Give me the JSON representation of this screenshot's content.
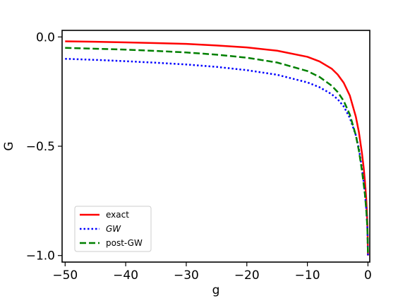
{
  "chart_data": {
    "type": "line",
    "xlabel": "g",
    "ylabel": "G",
    "xlim": [
      -50.5,
      0.3
    ],
    "ylim": [
      -1.03,
      0.03
    ],
    "xticks": [
      -50,
      -40,
      -30,
      -20,
      -10,
      0
    ],
    "xtick_labels": [
      "−50",
      "−40",
      "−30",
      "−20",
      "−10",
      "0"
    ],
    "yticks": [
      0.0,
      -0.5,
      -1.0
    ],
    "ytick_labels": [
      "0.0",
      "−0.5",
      "−1.0"
    ],
    "grid": false,
    "legend_position": "lower-left",
    "series": [
      {
        "name": "exact",
        "color": "#ff0000",
        "style": "solid",
        "italic": false,
        "x": [
          -50,
          -45,
          -40,
          -35,
          -30,
          -25,
          -20,
          -15,
          -10,
          -8,
          -6,
          -5,
          -4,
          -3,
          -2,
          -1.5,
          -1,
          -0.7,
          -0.5,
          -0.3,
          -0.2,
          -0.1,
          -0.05,
          0
        ],
        "y": [
          -0.02,
          -0.022,
          -0.025,
          -0.028,
          -0.032,
          -0.039,
          -0.048,
          -0.063,
          -0.091,
          -0.112,
          -0.145,
          -0.172,
          -0.21,
          -0.268,
          -0.365,
          -0.435,
          -0.53,
          -0.6,
          -0.66,
          -0.735,
          -0.79,
          -0.855,
          -0.91,
          -1.0
        ]
      },
      {
        "name": "GW",
        "color": "#0000ff",
        "style": "dotted",
        "italic": true,
        "x": [
          -50,
          -45,
          -40,
          -35,
          -30,
          -25,
          -20,
          -15,
          -10,
          -8,
          -6,
          -5,
          -4,
          -3,
          -2,
          -1.5,
          -1,
          -0.7,
          -0.5,
          -0.3,
          -0.2,
          -0.1,
          -0.05,
          0
        ],
        "y": [
          -0.1,
          -0.105,
          -0.111,
          -0.118,
          -0.126,
          -0.137,
          -0.152,
          -0.173,
          -0.208,
          -0.23,
          -0.262,
          -0.285,
          -0.318,
          -0.37,
          -0.45,
          -0.51,
          -0.6,
          -0.665,
          -0.715,
          -0.78,
          -0.82,
          -0.87,
          -0.92,
          -1.0
        ]
      },
      {
        "name": "post-GW",
        "color": "#008000",
        "style": "dashed",
        "italic": false,
        "x": [
          -50,
          -45,
          -40,
          -35,
          -30,
          -25,
          -20,
          -15,
          -10,
          -8,
          -6,
          -5,
          -4,
          -3,
          -2,
          -1.5,
          -1,
          -0.7,
          -0.5,
          -0.3,
          -0.2,
          -0.1,
          -0.05,
          0
        ],
        "y": [
          -0.05,
          -0.054,
          -0.058,
          -0.064,
          -0.071,
          -0.081,
          -0.095,
          -0.117,
          -0.156,
          -0.183,
          -0.223,
          -0.252,
          -0.293,
          -0.355,
          -0.45,
          -0.52,
          -0.61,
          -0.675,
          -0.72,
          -0.785,
          -0.825,
          -0.875,
          -0.925,
          -1.0
        ]
      }
    ]
  }
}
